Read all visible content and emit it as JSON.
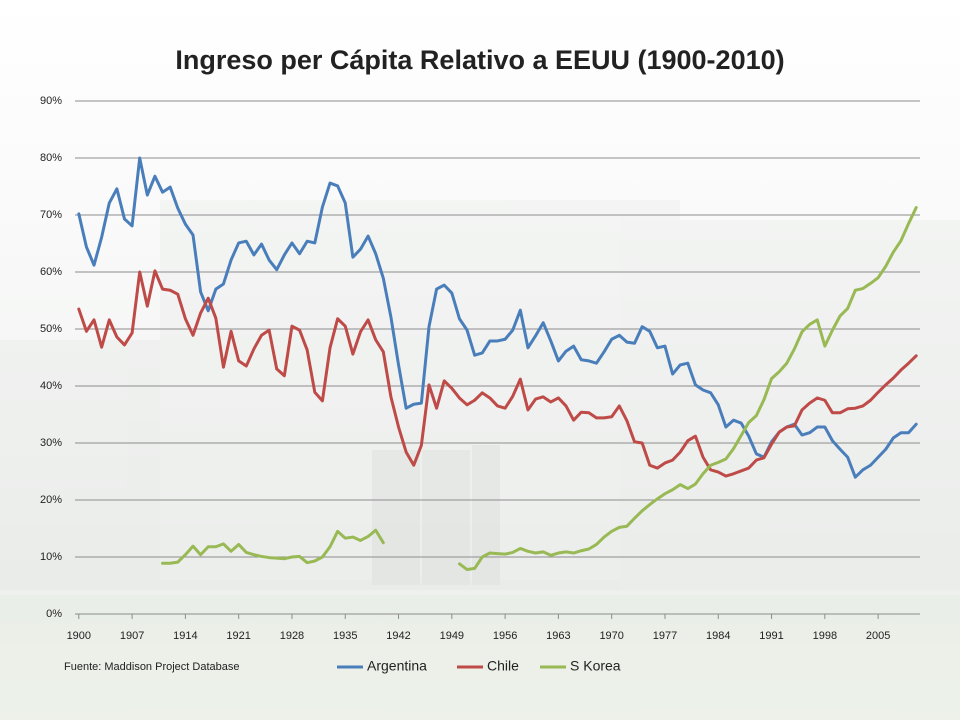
{
  "chart_data": {
    "type": "line",
    "title": "Ingreso per Cápita Relativo a EEUU (1900-2010)",
    "source": "Fuente: Maddison Project Database",
    "x": [
      1900,
      1901,
      1902,
      1903,
      1904,
      1905,
      1906,
      1907,
      1908,
      1909,
      1910,
      1911,
      1912,
      1913,
      1914,
      1915,
      1916,
      1917,
      1918,
      1919,
      1920,
      1921,
      1922,
      1923,
      1924,
      1925,
      1926,
      1927,
      1928,
      1929,
      1930,
      1931,
      1932,
      1933,
      1934,
      1935,
      1936,
      1937,
      1938,
      1939,
      1940,
      1941,
      1942,
      1943,
      1944,
      1945,
      1946,
      1947,
      1948,
      1949,
      1950,
      1951,
      1952,
      1953,
      1954,
      1955,
      1956,
      1957,
      1958,
      1959,
      1960,
      1961,
      1962,
      1963,
      1964,
      1965,
      1966,
      1967,
      1968,
      1969,
      1970,
      1971,
      1972,
      1973,
      1974,
      1975,
      1976,
      1977,
      1978,
      1979,
      1980,
      1981,
      1982,
      1983,
      1984,
      1985,
      1986,
      1987,
      1988,
      1989,
      1990,
      1991,
      1992,
      1993,
      1994,
      1995,
      1996,
      1997,
      1998,
      1999,
      2000,
      2001,
      2002,
      2003,
      2004,
      2005,
      2006,
      2007,
      2008,
      2009,
      2010
    ],
    "series": [
      {
        "name": "Argentina",
        "color": "#4a7ebb",
        "values": [
          70.2,
          64.4,
          61.2,
          66.1,
          72.1,
          74.6,
          69.3,
          68.1,
          80,
          73.5,
          76.8,
          74,
          74.9,
          71.2,
          68.4,
          66.5,
          56.5,
          53.2,
          57,
          57.9,
          62.1,
          65.1,
          65.4,
          63,
          64.9,
          62.1,
          60.4,
          63,
          65.1,
          63.2,
          65.4,
          65.1,
          71.4,
          75.6,
          75.1,
          72.1,
          62.6,
          64,
          66.3,
          63.2,
          58.9,
          52.1,
          43.7,
          36.1,
          36.8,
          37,
          50.4,
          57,
          57.7,
          56.3,
          51.8,
          49.8,
          45.4,
          45.8,
          47.9,
          47.9,
          48.2,
          49.8,
          53.3,
          46.7,
          48.8,
          51.1,
          47.9,
          44.4,
          46.1,
          47,
          44.6,
          44.4,
          44,
          46,
          48.2,
          48.9,
          47.7,
          47.5,
          50.4,
          49.6,
          46.7,
          47,
          42.1,
          43.7,
          44,
          40.2,
          39.3,
          38.8,
          36.7,
          32.8,
          34,
          33.5,
          31.2,
          28.1,
          27.5,
          30.2,
          31.9,
          32.8,
          33.3,
          31.4,
          31.8,
          32.8,
          32.8,
          30.4,
          28.9,
          27.5,
          24,
          25.3,
          26.1,
          27.5,
          28.9,
          30.9,
          31.8,
          31.8,
          33.3
        ]
      },
      {
        "name": "Chile",
        "color": "#be4b48",
        "values": [
          53.5,
          49.6,
          51.6,
          46.8,
          51.6,
          48.6,
          47.2,
          49.3,
          60,
          54,
          60.2,
          57,
          56.8,
          56.1,
          51.8,
          48.9,
          52.8,
          55.4,
          51.9,
          43.3,
          49.6,
          44.4,
          43.5,
          46.5,
          48.9,
          49.8,
          43,
          41.8,
          50.5,
          49.8,
          46.3,
          38.9,
          37.4,
          46.7,
          51.8,
          50.5,
          45.6,
          49.5,
          51.6,
          48.1,
          46,
          38.1,
          32.8,
          28.4,
          26.1,
          29.6,
          40.2,
          36.1,
          40.9,
          39.6,
          37.9,
          36.7,
          37.5,
          38.8,
          37.9,
          36.5,
          36.1,
          38.2,
          41.2,
          35.8,
          37.7,
          38.1,
          37.2,
          37.9,
          36.5,
          34,
          35.4,
          35.3,
          34.4,
          34.4,
          34.6,
          36.5,
          33.9,
          30.2,
          30,
          26.1,
          25.6,
          26.5,
          27,
          28.4,
          30.4,
          31.2,
          27.5,
          25.3,
          24.9,
          24.2,
          24.6,
          25.1,
          25.6,
          27,
          27.4,
          29.8,
          31.9,
          32.8,
          33,
          35.8,
          37,
          37.9,
          37.5,
          35.3,
          35.3,
          36,
          36.1,
          36.5,
          37.5,
          38.9,
          40.2,
          41.4,
          42.8,
          44,
          45.3
        ]
      },
      {
        "name": "S Korea",
        "color": "#98b954",
        "values": [
          null,
          null,
          null,
          null,
          null,
          null,
          null,
          null,
          null,
          null,
          null,
          8.9,
          8.9,
          9.1,
          10.4,
          11.9,
          10.4,
          11.8,
          11.8,
          12.3,
          11,
          12.2,
          10.8,
          10.4,
          10.1,
          9.9,
          9.8,
          9.7,
          10,
          10.1,
          9,
          9.3,
          10,
          11.8,
          14.5,
          13.3,
          13.5,
          12.9,
          13.6,
          14.7,
          12.5,
          null,
          null,
          null,
          null,
          null,
          null,
          null,
          null,
          null,
          8.8,
          7.8,
          8,
          10,
          10.7,
          10.6,
          10.5,
          10.8,
          11.5,
          11,
          10.7,
          10.9,
          10.3,
          10.7,
          10.9,
          10.7,
          11.1,
          11.4,
          12.2,
          13.5,
          14.5,
          15.2,
          15.4,
          16.8,
          18.1,
          19.2,
          20.2,
          21.1,
          21.8,
          22.7,
          22,
          22.8,
          24.6,
          26.1,
          26.6,
          27.2,
          29,
          31.3,
          33.6,
          34.8,
          37.6,
          41.3,
          42.5,
          44,
          46.5,
          49.5,
          50.8,
          51.6,
          47,
          49.8,
          52.3,
          53.6,
          56.8,
          57.1,
          58,
          59,
          61,
          63.5,
          65.5,
          68.5,
          71.3
        ]
      }
    ],
    "xlim": [
      1899.5,
      2010.5
    ],
    "xticks": [
      1900,
      1907,
      1914,
      1921,
      1928,
      1935,
      1942,
      1949,
      1956,
      1963,
      1970,
      1977,
      1984,
      1991,
      1998,
      2005
    ],
    "ylim": [
      0,
      90
    ],
    "yticks": [
      {
        "value": 0,
        "label": "0%"
      },
      {
        "value": 10,
        "label": "10%"
      },
      {
        "value": 20,
        "label": "20%"
      },
      {
        "value": 30,
        "label": "30%"
      },
      {
        "value": 40,
        "label": "40%"
      },
      {
        "value": 50,
        "label": "50%"
      },
      {
        "value": 60,
        "label": "60%"
      },
      {
        "value": 70,
        "label": "70%"
      },
      {
        "value": 80,
        "label": "80%"
      },
      {
        "value": 90,
        "label": "90%"
      }
    ],
    "grid": true
  }
}
